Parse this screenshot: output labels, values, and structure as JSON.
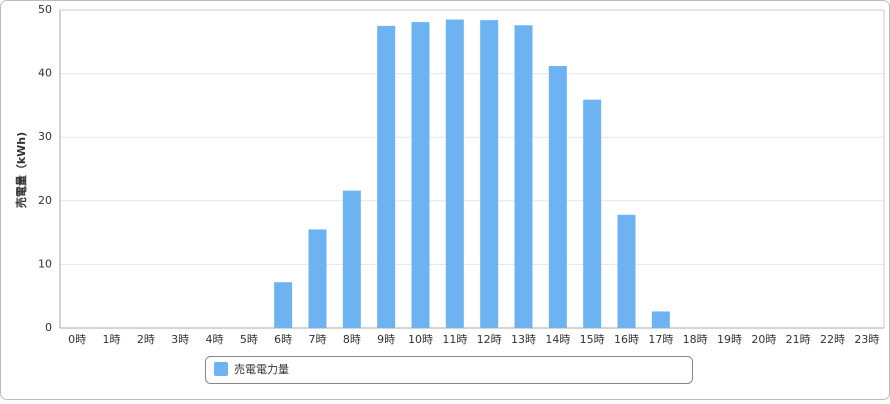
{
  "chart_data": {
    "type": "bar",
    "y_label": "売電量（kWh)",
    "categories": [
      "0時",
      "1時",
      "2時",
      "3時",
      "4時",
      "5時",
      "6時",
      "7時",
      "8時",
      "9時",
      "10時",
      "11時",
      "12時",
      "13時",
      "14時",
      "15時",
      "16時",
      "17時",
      "18時",
      "19時",
      "20時",
      "21時",
      "22時",
      "23時"
    ],
    "series": [
      {
        "name": "売電電力量",
        "color": "#6db3f2",
        "values": [
          0,
          0,
          0,
          0,
          0,
          0,
          7.2,
          15.5,
          21.6,
          47.5,
          48.1,
          48.5,
          48.4,
          47.6,
          41.2,
          35.9,
          17.8,
          2.6,
          0,
          0,
          0,
          0,
          0,
          0
        ]
      }
    ],
    "ylim": [
      0,
      50
    ],
    "yticks": [
      0,
      10,
      20,
      30,
      40,
      50
    ],
    "grid": true
  }
}
